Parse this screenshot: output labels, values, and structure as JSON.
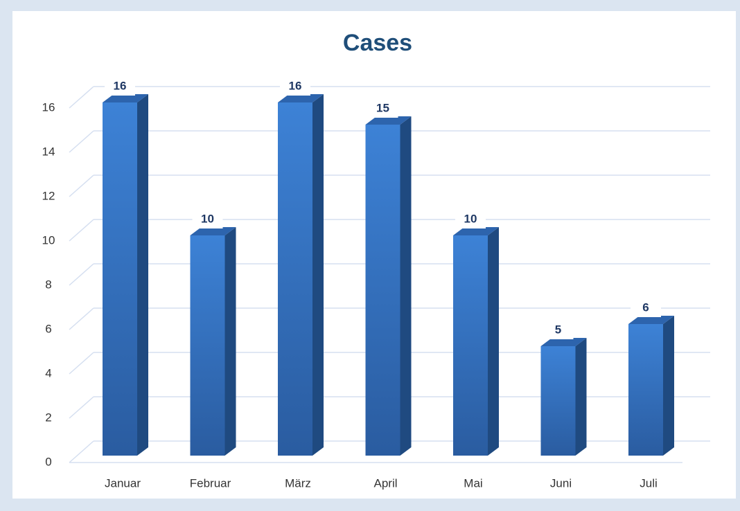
{
  "chart_data": {
    "type": "bar3d",
    "title": "Cases",
    "categories": [
      "Januar",
      "Februar",
      "März",
      "April",
      "Mai",
      "Juni",
      "Juli"
    ],
    "values": [
      16,
      10,
      16,
      15,
      10,
      5,
      6
    ],
    "color": "#3a7fd0",
    "ylim": [
      0,
      16
    ],
    "yticks": [
      0,
      2,
      4,
      6,
      8,
      10,
      12,
      14,
      16
    ],
    "grid": true
  }
}
